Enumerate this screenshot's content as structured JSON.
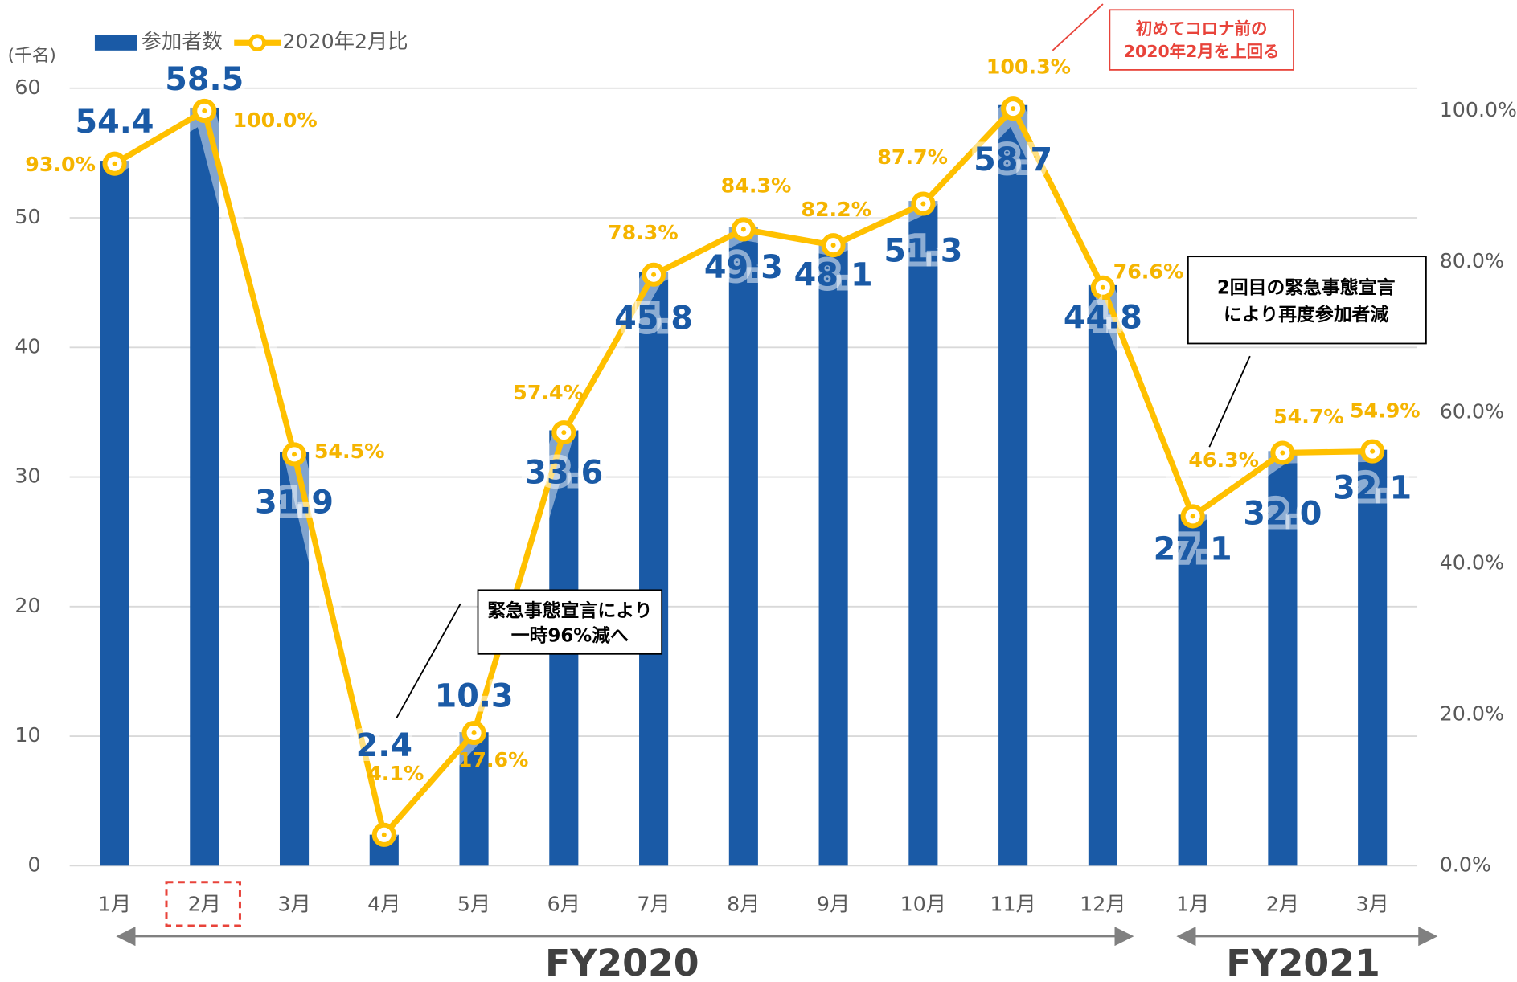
{
  "chart_data": {
    "type": "bar_line",
    "y_unit_label": "(千名)",
    "categories": [
      "1月",
      "2月",
      "3月",
      "4月",
      "5月",
      "6月",
      "7月",
      "8月",
      "9月",
      "10月",
      "11月",
      "12月",
      "1月",
      "2月",
      "3月"
    ],
    "fiscal_years": [
      "FY2020",
      "FY2021"
    ],
    "series": [
      {
        "name": "参加者数",
        "type": "bar",
        "color": "#1a5aa6",
        "values": [
          54.4,
          58.5,
          31.9,
          2.4,
          10.3,
          33.6,
          45.8,
          49.3,
          48.1,
          51.3,
          58.7,
          44.8,
          27.1,
          32.0,
          32.1
        ],
        "value_labels": [
          "54.4",
          "58.5",
          "31.9",
          "2.4",
          "10.3",
          "33.6",
          "45.8",
          "49.3",
          "48.1",
          "51.3",
          "58.7",
          "44.8",
          "27.1",
          "32.0",
          "32.1"
        ]
      },
      {
        "name": "2020年2月比",
        "type": "line",
        "color": "#ffc000",
        "axis": "y2",
        "values": [
          93.0,
          100.0,
          54.5,
          4.1,
          17.6,
          57.4,
          78.3,
          84.3,
          82.2,
          87.7,
          100.3,
          76.6,
          46.3,
          54.7,
          54.9
        ],
        "value_labels": [
          "93.0%",
          "100.0%",
          "54.5%",
          "4.1%",
          "17.6%",
          "57.4%",
          "78.3%",
          "84.3%",
          "82.2%",
          "87.7%",
          "100.3%",
          "76.6%",
          "46.3%",
          "54.7%",
          "54.9%"
        ]
      }
    ],
    "ylim": [
      0,
      60
    ],
    "yticks": [
      0,
      10,
      20,
      30,
      40,
      50,
      60
    ],
    "y2lim": [
      0,
      103
    ],
    "y2ticks": [
      {
        "value": 0,
        "label": "0.0%"
      },
      {
        "value": 20,
        "label": "20.0%"
      },
      {
        "value": 40,
        "label": "40.0%"
      },
      {
        "value": 60,
        "label": "60.0%"
      },
      {
        "value": 80,
        "label": "80.0%"
      },
      {
        "value": 100,
        "label": "100.0%"
      }
    ],
    "grid": true,
    "legend": "top-left",
    "annotations": [
      {
        "lines": [
          "初めてコロナ前の",
          "2020年2月を上回る"
        ]
      },
      {
        "lines": [
          "緊急事態宣言により",
          "一時96%減へ"
        ]
      },
      {
        "lines": [
          "2回目の緊急事態宣言",
          "により再度参加者減"
        ]
      }
    ]
  }
}
